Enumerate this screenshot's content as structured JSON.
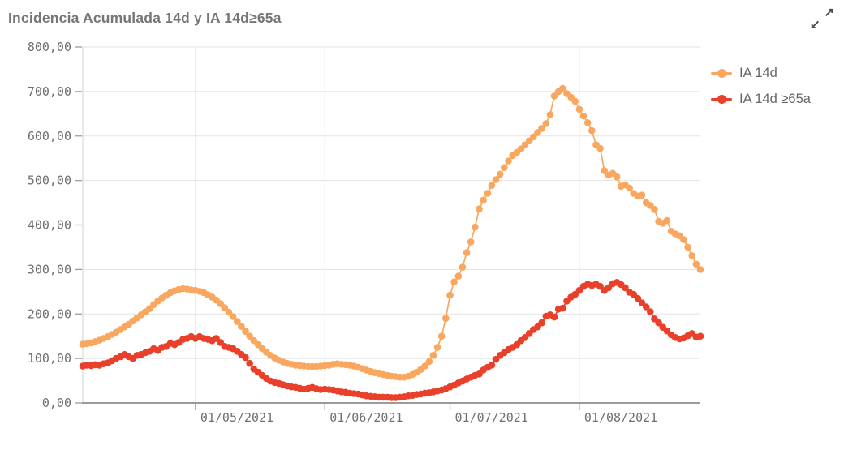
{
  "header": {
    "title": "Incidencia Acumulada 14d y IA 14d≥65a"
  },
  "icons": {
    "expand_ne": "↗",
    "expand_sw": "↙"
  },
  "legend": {
    "position": "right",
    "items": [
      {
        "label": "IA 14d",
        "color": "#F9A75F"
      },
      {
        "label": "IA 14d ≥65a",
        "color": "#E8402A"
      }
    ]
  },
  "chart_data": {
    "type": "line",
    "title": "Incidencia Acumulada 14d y IA 14d≥65a",
    "xlabel": "",
    "ylabel": "",
    "ylim": [
      0,
      800
    ],
    "grid": true,
    "legend_position": "right",
    "point_style": "dots-with-line",
    "x_range": {
      "start_date": "2021-04-04",
      "end_date": "2021-08-30",
      "interval": "daily",
      "point_count": 149
    },
    "x_ticks": {
      "indices": [
        27,
        58,
        88,
        119
      ],
      "labels": [
        "01/05/2021",
        "01/06/2021",
        "01/07/2021",
        "01/08/2021"
      ]
    },
    "y_ticks": {
      "values": [
        0,
        100,
        200,
        300,
        400,
        500,
        600,
        700,
        800
      ],
      "labels": [
        "0,00",
        "100,00",
        "200,00",
        "300,00",
        "400,00",
        "500,00",
        "600,00",
        "700,00",
        "800,00"
      ]
    },
    "colors": {
      "grid": "#E3E3E3",
      "axis": "#9B9B9B",
      "y_axis_line": "#D0D0D0",
      "tick": "#9B9B9B",
      "axis_label": "#6F6F6F"
    },
    "series": [
      {
        "name": "IA 14d",
        "color": "#F9A75F",
        "values": [
          132,
          133,
          135,
          138,
          141,
          145,
          149,
          154,
          159,
          165,
          171,
          177,
          184,
          191,
          198,
          205,
          212,
          221,
          229,
          236,
          242,
          248,
          252,
          255,
          257,
          256,
          254,
          253,
          251,
          248,
          243,
          238,
          231,
          223,
          214,
          204,
          194,
          183,
          172,
          161,
          150,
          140,
          131,
          122,
          114,
          107,
          101,
          96,
          92,
          89,
          87,
          85,
          84,
          83,
          82,
          82,
          82,
          83,
          84,
          85,
          87,
          88,
          87,
          86,
          85,
          83,
          80,
          77,
          74,
          71,
          68,
          66,
          64,
          62,
          60,
          59,
          58,
          58,
          60,
          64,
          69,
          75,
          83,
          93,
          107,
          125,
          150,
          190,
          242,
          272,
          285,
          305,
          338,
          362,
          395,
          436,
          456,
          471,
          489,
          502,
          514,
          529,
          544,
          556,
          563,
          571,
          580,
          589,
          598,
          608,
          617,
          628,
          648,
          690,
          700,
          707,
          695,
          687,
          678,
          660,
          645,
          630,
          612,
          580,
          572,
          522,
          512,
          516,
          508,
          487,
          490,
          483,
          471,
          465,
          467,
          450,
          444,
          435,
          408,
          404,
          410,
          386,
          380,
          376,
          367,
          350,
          331,
          312,
          300
        ]
      },
      {
        "name": "IA 14d ≥65a",
        "color": "#E8402A",
        "values": [
          83,
          85,
          84,
          86,
          85,
          88,
          90,
          95,
          100,
          104,
          109,
          104,
          100,
          107,
          109,
          113,
          116,
          122,
          118,
          125,
          127,
          134,
          131,
          136,
          143,
          145,
          149,
          145,
          149,
          145,
          143,
          140,
          145,
          136,
          127,
          125,
          122,
          116,
          109,
          102,
          89,
          76,
          69,
          62,
          55,
          49,
          46,
          44,
          41,
          38,
          36,
          35,
          33,
          31,
          33,
          35,
          32,
          30,
          31,
          30,
          29,
          27,
          25,
          24,
          22,
          21,
          20,
          18,
          16,
          15,
          14,
          13,
          13,
          13,
          12,
          12,
          13,
          14,
          16,
          17,
          19,
          20,
          22,
          23,
          25,
          27,
          29,
          32,
          36,
          40,
          45,
          49,
          54,
          58,
          62,
          65,
          74,
          80,
          85,
          98,
          107,
          113,
          120,
          125,
          131,
          140,
          147,
          156,
          165,
          171,
          180,
          195,
          198,
          193,
          211,
          213,
          229,
          238,
          244,
          253,
          262,
          267,
          264,
          267,
          262,
          253,
          259,
          268,
          271,
          266,
          259,
          249,
          244,
          235,
          225,
          216,
          205,
          189,
          180,
          170,
          162,
          153,
          147,
          144,
          146,
          151,
          156,
          148,
          150
        ]
      }
    ]
  }
}
